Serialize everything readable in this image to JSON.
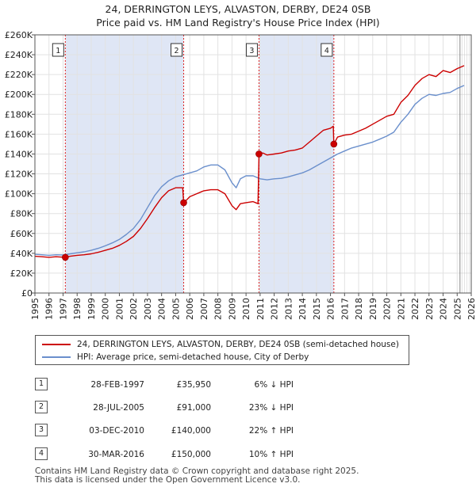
{
  "chart_data": {
    "type": "line",
    "title_line1": "24, DERRINGTON LEYS, ALVASTON, DERBY, DE24 0SB",
    "title_line2": "Price paid vs. HM Land Registry's House Price Index (HPI)",
    "xlabel": "",
    "ylabel": "",
    "xlim": [
      1995,
      2026
    ],
    "ylim": [
      0,
      260000
    ],
    "x_ticks": [
      "1995",
      "1996",
      "1997",
      "1998",
      "1999",
      "2000",
      "2001",
      "2002",
      "2003",
      "2004",
      "2005",
      "2006",
      "2007",
      "2008",
      "2009",
      "2010",
      "2011",
      "2012",
      "2013",
      "2014",
      "2015",
      "2016",
      "2017",
      "2018",
      "2019",
      "2020",
      "2021",
      "2022",
      "2023",
      "2024",
      "2025",
      "2026"
    ],
    "y_ticks": [
      {
        "value": 0,
        "label": "£0"
      },
      {
        "value": 20000,
        "label": "£20K"
      },
      {
        "value": 40000,
        "label": "£40K"
      },
      {
        "value": 60000,
        "label": "£60K"
      },
      {
        "value": 80000,
        "label": "£80K"
      },
      {
        "value": 100000,
        "label": "£100K"
      },
      {
        "value": 120000,
        "label": "£120K"
      },
      {
        "value": 140000,
        "label": "£140K"
      },
      {
        "value": 160000,
        "label": "£160K"
      },
      {
        "value": 180000,
        "label": "£180K"
      },
      {
        "value": 200000,
        "label": "£200K"
      },
      {
        "value": 220000,
        "label": "£220K"
      },
      {
        "value": 240000,
        "label": "£240K"
      },
      {
        "value": 260000,
        "label": "£260K"
      }
    ],
    "colors": {
      "price": "#cc0000",
      "hpi": "#6a8fcc",
      "shade": "#dfe6f5",
      "vline": "#dd2222"
    },
    "shaded_ranges": [
      [
        1997.16,
        2005.57
      ],
      [
        2010.92,
        2016.24
      ]
    ],
    "forecast_start": 2025.2,
    "sale_markers": [
      {
        "num": "1",
        "x": 1997.16,
        "y": 35950
      },
      {
        "num": "2",
        "x": 2005.57,
        "y": 91000
      },
      {
        "num": "3",
        "x": 2010.92,
        "y": 140000
      },
      {
        "num": "4",
        "x": 2016.24,
        "y": 150000
      }
    ],
    "series": [
      {
        "name": "price",
        "label": "24, DERRINGTON LEYS, ALVASTON, DERBY, DE24 0SB (semi-detached house)",
        "x": [
          1995.0,
          1995.5,
          1996.0,
          1996.5,
          1997.16,
          1997.5,
          1998.0,
          1998.5,
          1999.0,
          1999.5,
          2000.0,
          2000.5,
          2001.0,
          2001.5,
          2002.0,
          2002.5,
          2003.0,
          2003.5,
          2004.0,
          2004.5,
          2005.0,
          2005.5,
          2005.57,
          2005.8,
          2006.0,
          2006.5,
          2007.0,
          2007.5,
          2008.0,
          2008.5,
          2009.0,
          2009.3,
          2009.6,
          2010.0,
          2010.5,
          2010.85,
          2010.92,
          2011.2,
          2011.5,
          2012.0,
          2012.5,
          2013.0,
          2013.5,
          2014.0,
          2014.5,
          2015.0,
          2015.5,
          2016.0,
          2016.2,
          2016.24,
          2016.5,
          2017.0,
          2017.5,
          2018.0,
          2018.5,
          2019.0,
          2019.5,
          2020.0,
          2020.5,
          2021.0,
          2021.5,
          2022.0,
          2022.5,
          2023.0,
          2023.5,
          2024.0,
          2024.5,
          2025.0,
          2025.5
        ],
        "y": [
          37000,
          36500,
          36000,
          36500,
          35950,
          37000,
          38000,
          38500,
          39500,
          41000,
          43000,
          45000,
          48000,
          52000,
          57000,
          65000,
          75000,
          86000,
          96000,
          103000,
          106000,
          106000,
          91000,
          94000,
          97000,
          100000,
          103000,
          104000,
          104000,
          100000,
          88000,
          84000,
          90000,
          91000,
          92000,
          90000,
          140000,
          141000,
          139000,
          140000,
          141000,
          143000,
          144000,
          146000,
          152000,
          158000,
          164000,
          166000,
          168000,
          150000,
          157000,
          159000,
          160000,
          163000,
          166000,
          170000,
          174000,
          178000,
          180000,
          192000,
          199000,
          209000,
          216000,
          220000,
          218000,
          224000,
          222000,
          226000,
          229000
        ]
      },
      {
        "name": "hpi",
        "label": "HPI: Average price, semi-detached house, City of Derby",
        "x": [
          1995.0,
          1995.5,
          1996.0,
          1996.5,
          1997.0,
          1997.5,
          1998.0,
          1998.5,
          1999.0,
          1999.5,
          2000.0,
          2000.5,
          2001.0,
          2001.5,
          2002.0,
          2002.5,
          2003.0,
          2003.5,
          2004.0,
          2004.5,
          2005.0,
          2005.5,
          2006.0,
          2006.5,
          2007.0,
          2007.5,
          2008.0,
          2008.5,
          2009.0,
          2009.3,
          2009.6,
          2010.0,
          2010.5,
          2011.0,
          2011.5,
          2012.0,
          2012.5,
          2013.0,
          2013.5,
          2014.0,
          2014.5,
          2015.0,
          2015.5,
          2016.0,
          2016.5,
          2017.0,
          2017.5,
          2018.0,
          2018.5,
          2019.0,
          2019.5,
          2020.0,
          2020.5,
          2021.0,
          2021.5,
          2022.0,
          2022.5,
          2023.0,
          2023.5,
          2024.0,
          2024.5,
          2025.0,
          2025.5
        ],
        "y": [
          39000,
          38500,
          38000,
          38500,
          38300,
          39500,
          40500,
          41500,
          43000,
          45000,
          47500,
          50500,
          54000,
          59000,
          65000,
          74000,
          86000,
          98000,
          107000,
          113000,
          117000,
          119000,
          121000,
          123000,
          127000,
          129000,
          129000,
          124000,
          111000,
          106000,
          115000,
          118000,
          118000,
          115000,
          114000,
          115000,
          115500,
          117000,
          119000,
          121000,
          124000,
          128000,
          132000,
          136000,
          140000,
          143000,
          146000,
          148000,
          150000,
          152000,
          155000,
          158000,
          162000,
          172000,
          180000,
          190000,
          196000,
          200000,
          199000,
          201000,
          202000,
          206000,
          209000
        ]
      }
    ]
  },
  "legend": {
    "price_label": "24, DERRINGTON LEYS, ALVASTON, DERBY, DE24 0SB (semi-detached house)",
    "hpi_label": "HPI: Average price, semi-detached house, City of Derby"
  },
  "transactions": [
    {
      "num": "1",
      "date": "28-FEB-1997",
      "price": "£35,950",
      "hpi": "6% ↓ HPI"
    },
    {
      "num": "2",
      "date": "28-JUL-2005",
      "price": "£91,000",
      "hpi": "23% ↓ HPI"
    },
    {
      "num": "3",
      "date": "03-DEC-2010",
      "price": "£140,000",
      "hpi": "22% ↑ HPI"
    },
    {
      "num": "4",
      "date": "30-MAR-2016",
      "price": "£150,000",
      "hpi": "10% ↑ HPI"
    }
  ],
  "footer": {
    "line1": "Contains HM Land Registry data © Crown copyright and database right 2025.",
    "line2": "This data is licensed under the Open Government Licence v3.0."
  }
}
